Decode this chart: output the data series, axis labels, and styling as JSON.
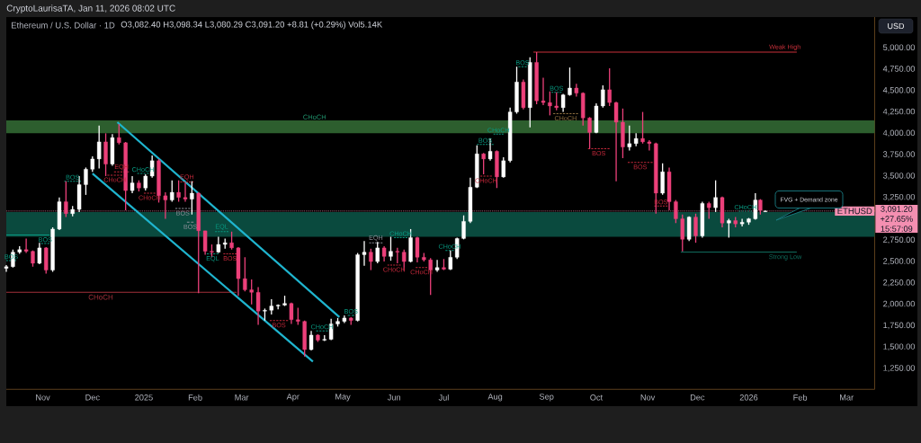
{
  "chart_data": {
    "type": "candlestick",
    "title": "Ethereum / U.S. Dollar · 1D",
    "subtitle": "O3,082.40 H3,098.34 L3,080.29 C3,091.20 +8.81 (+0.29%) Vol5.14K",
    "ylabel": "USD",
    "x": [
      "2024-10-10",
      "2024-10-14",
      "2024-10-18",
      "2024-10-22",
      "2024-10-26",
      "2024-10-30",
      "2024-11-03",
      "2024-11-07",
      "2024-11-11",
      "2024-11-15",
      "2024-11-19",
      "2024-11-23",
      "2024-11-27",
      "2024-12-01",
      "2024-12-05",
      "2024-12-09",
      "2024-12-13",
      "2024-12-17",
      "2024-12-21",
      "2024-12-25",
      "2024-12-29",
      "2025-01-02",
      "2025-01-06",
      "2025-01-10",
      "2025-01-14",
      "2025-01-18",
      "2025-01-22",
      "2025-01-26",
      "2025-01-30",
      "2025-02-03",
      "2025-02-07",
      "2025-02-11",
      "2025-02-15",
      "2025-02-19",
      "2025-02-23",
      "2025-02-27",
      "2025-03-03",
      "2025-03-07",
      "2025-03-11",
      "2025-03-15",
      "2025-03-19",
      "2025-03-23",
      "2025-03-27",
      "2025-03-31",
      "2025-04-04",
      "2025-04-08",
      "2025-04-12",
      "2025-04-16",
      "2025-04-20",
      "2025-04-24",
      "2025-04-28",
      "2025-05-02",
      "2025-05-06",
      "2025-05-10",
      "2025-05-14",
      "2025-05-18",
      "2025-05-22",
      "2025-05-26",
      "2025-05-30",
      "2025-06-03",
      "2025-06-07",
      "2025-06-11",
      "2025-06-15",
      "2025-06-19",
      "2025-06-23",
      "2025-06-27",
      "2025-07-01",
      "2025-07-05",
      "2025-07-09",
      "2025-07-13",
      "2025-07-17",
      "2025-07-21",
      "2025-07-25",
      "2025-07-29",
      "2025-08-02",
      "2025-08-06",
      "2025-08-10",
      "2025-08-14",
      "2025-08-18",
      "2025-08-22",
      "2025-08-26",
      "2025-08-30",
      "2025-09-03",
      "2025-09-07",
      "2025-09-11",
      "2025-09-15",
      "2025-09-19",
      "2025-09-23",
      "2025-09-27",
      "2025-10-01",
      "2025-10-05",
      "2025-10-09",
      "2025-10-13",
      "2025-10-17",
      "2025-10-21",
      "2025-10-25",
      "2025-10-29",
      "2025-11-02",
      "2025-11-06",
      "2025-11-10",
      "2025-11-14",
      "2025-11-18",
      "2025-11-22",
      "2025-11-26",
      "2025-11-30",
      "2025-12-04",
      "2025-12-08",
      "2025-12-12",
      "2025-12-16",
      "2025-12-20",
      "2025-12-24",
      "2025-12-28",
      "2026-01-01",
      "2026-01-05",
      "2026-01-08",
      "2026-01-11"
    ],
    "ohlc": [
      [
        2420,
        2460,
        2380,
        2440
      ],
      [
        2440,
        2640,
        2430,
        2610
      ],
      [
        2610,
        2680,
        2590,
        2640
      ],
      [
        2640,
        2770,
        2600,
        2620
      ],
      [
        2620,
        2630,
        2440,
        2480
      ],
      [
        2480,
        2720,
        2470,
        2660
      ],
      [
        2660,
        2670,
        2360,
        2400
      ],
      [
        2400,
        2900,
        2380,
        2880
      ],
      [
        2880,
        3250,
        2870,
        3200
      ],
      [
        3200,
        3440,
        3020,
        3060
      ],
      [
        3060,
        3150,
        3030,
        3110
      ],
      [
        3110,
        3500,
        3080,
        3400
      ],
      [
        3400,
        3600,
        3280,
        3580
      ],
      [
        3580,
        3730,
        3550,
        3700
      ],
      [
        3700,
        4090,
        3590,
        3900
      ],
      [
        3900,
        4000,
        3500,
        3640
      ],
      [
        3640,
        3990,
        3620,
        3950
      ],
      [
        3950,
        4110,
        3870,
        3890
      ],
      [
        3890,
        3900,
        3100,
        3330
      ],
      [
        3330,
        3500,
        3300,
        3420
      ],
      [
        3420,
        3450,
        3320,
        3360
      ],
      [
        3360,
        3520,
        3330,
        3500
      ],
      [
        3500,
        3740,
        3480,
        3680
      ],
      [
        3680,
        3700,
        3190,
        3270
      ],
      [
        3270,
        3310,
        3000,
        3220
      ],
      [
        3220,
        3450,
        3200,
        3310
      ],
      [
        3310,
        3450,
        3200,
        3250
      ],
      [
        3250,
        3420,
        3200,
        3230
      ],
      [
        3230,
        3440,
        3050,
        3300
      ],
      [
        3300,
        3310,
        2130,
        2860
      ],
      [
        2860,
        2860,
        2580,
        2620
      ],
      [
        2620,
        2700,
        2550,
        2610
      ],
      [
        2610,
        2790,
        2600,
        2700
      ],
      [
        2700,
        2770,
        2650,
        2720
      ],
      [
        2720,
        2850,
        2640,
        2660
      ],
      [
        2660,
        2670,
        2100,
        2300
      ],
      [
        2300,
        2550,
        2150,
        2170
      ],
      [
        2170,
        2290,
        2000,
        2140
      ],
      [
        2140,
        2200,
        1760,
        1920
      ],
      [
        1920,
        1950,
        1810,
        1930
      ],
      [
        1930,
        2060,
        1880,
        1980
      ],
      [
        1980,
        2000,
        1940,
        1990
      ],
      [
        1990,
        2100,
        1980,
        2010
      ],
      [
        2010,
        2020,
        1770,
        1820
      ],
      [
        1820,
        1960,
        1760,
        1800
      ],
      [
        1800,
        1810,
        1390,
        1470
      ],
      [
        1470,
        1690,
        1460,
        1640
      ],
      [
        1640,
        1650,
        1560,
        1580
      ],
      [
        1580,
        1640,
        1570,
        1590
      ],
      [
        1590,
        1830,
        1580,
        1770
      ],
      [
        1770,
        1840,
        1740,
        1800
      ],
      [
        1800,
        1870,
        1780,
        1840
      ],
      [
        1840,
        1850,
        1760,
        1810
      ],
      [
        1810,
        2600,
        1800,
        2580
      ],
      [
        2580,
        2740,
        2450,
        2610
      ],
      [
        2610,
        2650,
        2400,
        2500
      ],
      [
        2500,
        2730,
        2480,
        2660
      ],
      [
        2660,
        2680,
        2500,
        2560
      ],
      [
        2560,
        2790,
        2510,
        2620
      ],
      [
        2620,
        2660,
        2480,
        2610
      ],
      [
        2610,
        2640,
        2390,
        2500
      ],
      [
        2500,
        2880,
        2490,
        2780
      ],
      [
        2780,
        2790,
        2490,
        2550
      ],
      [
        2550,
        2600,
        2500,
        2520
      ],
      [
        2520,
        2540,
        2110,
        2400
      ],
      [
        2400,
        2520,
        2380,
        2430
      ],
      [
        2430,
        2530,
        2400,
        2410
      ],
      [
        2410,
        2630,
        2400,
        2550
      ],
      [
        2550,
        2780,
        2530,
        2770
      ],
      [
        2770,
        3040,
        2760,
        2970
      ],
      [
        2970,
        3480,
        2950,
        3370
      ],
      [
        3370,
        3860,
        3360,
        3760
      ],
      [
        3760,
        3770,
        3520,
        3700
      ],
      [
        3700,
        3940,
        3680,
        3790
      ],
      [
        3790,
        3800,
        3360,
        3490
      ],
      [
        3490,
        3720,
        3480,
        3680
      ],
      [
        3680,
        4300,
        3660,
        4250
      ],
      [
        4250,
        4780,
        4230,
        4600
      ],
      [
        4600,
        4630,
        4280,
        4300
      ],
      [
        4300,
        4890,
        4070,
        4830
      ],
      [
        4830,
        4950,
        4340,
        4380
      ],
      [
        4380,
        4650,
        4330,
        4360
      ],
      [
        4360,
        4490,
        4210,
        4320
      ],
      [
        4320,
        4480,
        4270,
        4300
      ],
      [
        4300,
        4460,
        4250,
        4450
      ],
      [
        4450,
        4770,
        4440,
        4530
      ],
      [
        4530,
        4580,
        4430,
        4470
      ],
      [
        4470,
        4480,
        4090,
        4180
      ],
      [
        4180,
        4190,
        3820,
        4010
      ],
      [
        4010,
        4350,
        4000,
        4320
      ],
      [
        4320,
        4560,
        4300,
        4510
      ],
      [
        4510,
        4760,
        4320,
        4360
      ],
      [
        4360,
        4370,
        3440,
        4130
      ],
      [
        4130,
        4290,
        3710,
        3840
      ],
      [
        3840,
        4090,
        3800,
        3880
      ],
      [
        3880,
        4000,
        3850,
        3940
      ],
      [
        3940,
        4250,
        3880,
        3900
      ],
      [
        3900,
        3920,
        3800,
        3880
      ],
      [
        3880,
        3890,
        3060,
        3300
      ],
      [
        3300,
        3650,
        3280,
        3550
      ],
      [
        3550,
        3600,
        3100,
        3200
      ],
      [
        3200,
        3220,
        2950,
        3000
      ],
      [
        3000,
        3050,
        2620,
        2760
      ],
      [
        2760,
        3030,
        2740,
        3020
      ],
      [
        3020,
        3060,
        2720,
        2800
      ],
      [
        2800,
        3200,
        2780,
        3180
      ],
      [
        3180,
        3200,
        3000,
        3130
      ],
      [
        3130,
        3450,
        3080,
        3250
      ],
      [
        3250,
        3260,
        2900,
        2950
      ],
      [
        2950,
        3000,
        2780,
        2980
      ],
      [
        2980,
        3020,
        2900,
        2940
      ],
      [
        2940,
        3000,
        2910,
        2960
      ],
      [
        2960,
        3010,
        2930,
        3000
      ],
      [
        3000,
        3300,
        2990,
        3220
      ],
      [
        3220,
        3230,
        3050,
        3100
      ],
      [
        3082.4,
        3098.34,
        3080.29,
        3091.2
      ]
    ],
    "colors": [
      "#ffffff",
      "#ffffff",
      "#ffffff",
      "#ec407a",
      "#ec407a",
      "#ffffff",
      "#ec407a",
      "#ffffff",
      "#ffffff",
      "#ec407a",
      "#ffffff",
      "#ffffff",
      "#ffffff",
      "#ffffff",
      "#ffffff",
      "#ec407a",
      "#ffffff",
      "#ec407a",
      "#ec407a",
      "#ffffff",
      "#ec407a",
      "#ffffff",
      "#ffffff",
      "#ec407a",
      "#ec407a",
      "#ffffff",
      "#ec407a",
      "#ec407a",
      "#ffffff",
      "#ec407a",
      "#ec407a",
      "#ec407a",
      "#ffffff",
      "#ffffff",
      "#ec407a",
      "#ec407a",
      "#ec407a",
      "#ec407a",
      "#ec407a",
      "#ffffff",
      "#ffffff",
      "#ffffff",
      "#ffffff",
      "#ec407a",
      "#ec407a",
      "#ec407a",
      "#ffffff",
      "#ec407a",
      "#ffffff",
      "#ffffff",
      "#ffffff",
      "#ffffff",
      "#ec407a",
      "#ffffff",
      "#ffffff",
      "#ec407a",
      "#ffffff",
      "#ec407a",
      "#ffffff",
      "#ec407a",
      "#ec407a",
      "#ffffff",
      "#ec407a",
      "#ec407a",
      "#ec407a",
      "#ffffff",
      "#ec407a",
      "#ffffff",
      "#ffffff",
      "#ffffff",
      "#ffffff",
      "#ffffff",
      "#ec407a",
      "#ffffff",
      "#ec407a",
      "#ffffff",
      "#ffffff",
      "#ffffff",
      "#ec407a",
      "#ffffff",
      "#ec407a",
      "#ec407a",
      "#ec407a",
      "#ec407a",
      "#ffffff",
      "#ffffff",
      "#ec407a",
      "#ec407a",
      "#ec407a",
      "#ffffff",
      "#ffffff",
      "#ec407a",
      "#ec407a",
      "#ec407a",
      "#ffffff",
      "#ffffff",
      "#ec407a",
      "#ec407a",
      "#ec407a",
      "#ffffff",
      "#ec407a",
      "#ec407a",
      "#ec407a",
      "#ffffff",
      "#ec407a",
      "#ffffff",
      "#ec407a",
      "#ffffff",
      "#ec407a",
      "#ffffff",
      "#ec407a",
      "#ffffff",
      "#ffffff",
      "#ffffff",
      "#ec407a",
      "#ffffff"
    ],
    "series": [
      {
        "type": "line",
        "name": "CHoCH",
        "color": "#a3313b",
        "x": [
          "2024-10-10",
          "2025-02-26"
        ],
        "values": [
          2140,
          2140
        ]
      },
      {
        "type": "line",
        "name": "Weak High",
        "color": "#c9303a",
        "x": [
          "2025-08-24",
          "2026-01-30"
        ],
        "values": [
          4950,
          4950
        ]
      },
      {
        "type": "line",
        "name": "Strong Low",
        "color": "#0f6b5c",
        "x": [
          "2025-11-21",
          "2026-01-30"
        ],
        "values": [
          2610,
          2610
        ]
      },
      {
        "type": "line",
        "color": "#1fb5cf",
        "x": [
          "2024-12-16",
          "2025-04-29"
        ],
        "values": [
          4130,
          1850
        ]
      },
      {
        "type": "line",
        "color": "#1fb5cf",
        "x": [
          "2024-12-01",
          "2025-04-13"
        ],
        "values": [
          3530,
          1330
        ]
      },
      {
        "type": "line",
        "color": "#089981",
        "x": [
          "2024-10-10",
          "2024-11-05"
        ],
        "values": [
          2810,
          2810
        ]
      },
      {
        "type": "line",
        "name": "BOS",
        "color": "#089981",
        "line_style": "dashed",
        "x": [
          "2024-11-14",
          "2024-11-24"
        ],
        "values": [
          3440,
          3440
        ]
      },
      {
        "type": "line",
        "name": "EQH",
        "color": "#c2283a",
        "line_style": "dashed",
        "x": [
          "2024-12-14",
          "2024-12-23"
        ],
        "values": [
          3550,
          3550
        ]
      },
      {
        "type": "line",
        "name": "CHoCH",
        "color": "#089981",
        "line_style": "dashed",
        "x": [
          "2024-12-28",
          "2025-01-04"
        ],
        "values": [
          3530,
          3530
        ]
      },
      {
        "type": "line",
        "name": "CHoCH",
        "color": "#c2283a",
        "line_style": "dashed",
        "x": [
          "2024-12-10",
          "2024-12-19"
        ],
        "values": [
          3510,
          3510
        ]
      },
      {
        "type": "line",
        "name": "CHoCH",
        "color": "#c2283a",
        "line_style": "dashed",
        "x": [
          "2025-01-01",
          "2025-01-08"
        ],
        "values": [
          3300,
          3300
        ]
      },
      {
        "type": "line",
        "name": "EQH",
        "color": "#c2283a",
        "line_style": "dashed",
        "x": [
          "2025-01-23",
          "2025-01-31"
        ],
        "values": [
          3430,
          3430
        ]
      },
      {
        "type": "line",
        "name": "BOS",
        "color": "#8c8f99",
        "line_style": "dashed",
        "x": [
          "2025-01-20",
          "2025-01-29"
        ],
        "values": [
          3120,
          3120
        ]
      },
      {
        "type": "line",
        "name": "BOS",
        "color": "#8c8f99",
        "line_style": "dashed",
        "x": [
          "2025-01-27",
          "2025-01-31"
        ],
        "values": [
          2960,
          2960
        ]
      },
      {
        "type": "line",
        "name": "EQL",
        "color": "#089981",
        "line_style": "dashed",
        "x": [
          "2025-02-13",
          "2025-02-21"
        ],
        "values": [
          2850,
          2850
        ]
      },
      {
        "type": "line",
        "name": "EQL",
        "color": "#089981",
        "line_style": "dashed",
        "x": [
          "2025-02-08",
          "2025-02-15"
        ],
        "values": [
          2590,
          2590
        ]
      },
      {
        "type": "line",
        "name": "BOS",
        "color": "#c2283a",
        "line_style": "dashed",
        "x": [
          "2025-02-18",
          "2025-02-26"
        ],
        "values": [
          2590,
          2590
        ]
      },
      {
        "type": "line",
        "name": "BOS",
        "color": "#c2283a",
        "line_style": "dashed",
        "x": [
          "2025-03-18",
          "2025-03-29"
        ],
        "values": [
          1810,
          1810
        ]
      },
      {
        "type": "line",
        "name": "BOS",
        "color": "#089981",
        "line_style": "dashed",
        "x": [
          "2024-10-31",
          "2024-11-05"
        ],
        "values": [
          2710,
          2710
        ]
      },
      {
        "type": "line",
        "name": "BOS",
        "color": "#089981",
        "line_style": "dashed",
        "x": [
          "2024-10-10",
          "2024-10-16"
        ],
        "values": [
          2510,
          2510
        ]
      },
      {
        "type": "line",
        "name": "CHoCH",
        "color": "#089981",
        "line_style": "dashed",
        "x": [
          "2025-04-15",
          "2025-04-22"
        ],
        "values": [
          1690,
          1690
        ]
      },
      {
        "type": "line",
        "name": "BOS",
        "color": "#089981",
        "line_style": "dashed",
        "x": [
          "2025-05-04",
          "2025-05-08"
        ],
        "values": [
          1870,
          1870
        ]
      },
      {
        "type": "line",
        "name": "EQH",
        "color": "#8c8f99",
        "line_style": "dashed",
        "x": [
          "2025-05-17",
          "2025-05-25"
        ],
        "values": [
          2720,
          2720
        ]
      },
      {
        "type": "line",
        "name": "CHoCH",
        "color": "#089981",
        "line_style": "dashed",
        "x": [
          "2025-06-01",
          "2025-06-09"
        ],
        "values": [
          2780,
          2780
        ]
      },
      {
        "type": "line",
        "name": "CHoCH",
        "color": "#c2283a",
        "line_style": "dashed",
        "x": [
          "2025-05-28",
          "2025-06-05"
        ],
        "values": [
          2460,
          2460
        ]
      },
      {
        "type": "line",
        "name": "CHoCH",
        "color": "#c2283a",
        "line_style": "dashed",
        "x": [
          "2025-06-14",
          "2025-06-21"
        ],
        "values": [
          2430,
          2430
        ]
      },
      {
        "type": "line",
        "name": "CHoCH",
        "color": "#089981",
        "line_style": "dashed",
        "x": [
          "2025-07-02",
          "2025-07-07"
        ],
        "values": [
          2630,
          2630
        ]
      },
      {
        "type": "line",
        "name": "BOS",
        "color": "#089981",
        "line_style": "dashed",
        "x": [
          "2025-07-21",
          "2025-07-31"
        ],
        "values": [
          3870,
          3870
        ]
      },
      {
        "type": "line",
        "name": "CHoCH",
        "color": "#089981",
        "line_style": "dashed",
        "x": [
          "2025-07-31",
          "2025-08-06"
        ],
        "values": [
          3990,
          3990
        ]
      },
      {
        "type": "line",
        "name": "CHoCH",
        "color": "#c2283a",
        "line_style": "dashed",
        "x": [
          "2025-07-23",
          "2025-07-30"
        ],
        "values": [
          3500,
          3500
        ]
      },
      {
        "type": "line",
        "name": "BOS",
        "color": "#089981",
        "line_style": "dashed",
        "x": [
          "2025-08-15",
          "2025-08-20"
        ],
        "values": [
          4780,
          4780
        ]
      },
      {
        "type": "line",
        "name": "BOS",
        "color": "#089981",
        "line_style": "dashed",
        "x": [
          "2025-09-04",
          "2025-09-10"
        ],
        "values": [
          4480,
          4480
        ]
      },
      {
        "type": "line",
        "name": "CHoCH",
        "color": "#8d6e3f",
        "line_style": "dashed",
        "x": [
          "2025-09-05",
          "2025-09-20"
        ],
        "values": [
          4230,
          4230
        ]
      },
      {
        "type": "line",
        "name": "BOS",
        "color": "#c2283a",
        "line_style": "dashed",
        "x": [
          "2025-09-26",
          "2025-10-09"
        ],
        "values": [
          3820,
          3820
        ]
      },
      {
        "type": "line",
        "name": "BOS",
        "color": "#c2283a",
        "line_style": "dashed",
        "x": [
          "2025-10-20",
          "2025-11-04"
        ],
        "values": [
          3660,
          3660
        ]
      },
      {
        "type": "line",
        "name": "BOS",
        "color": "#c2283a",
        "line_style": "dashed",
        "x": [
          "2025-11-05",
          "2025-11-13"
        ],
        "values": [
          3150,
          3150
        ]
      },
      {
        "type": "line",
        "name": "CHoCH",
        "color": "#089981",
        "line_style": "dashed",
        "x": [
          "2025-12-26",
          "2026-01-03"
        ],
        "values": [
          3090,
          3090
        ]
      }
    ],
    "bands": [
      {
        "axis": "y",
        "from": 4000,
        "to": 4150,
        "label": "CHoCH",
        "color": "#2d5e2e"
      },
      {
        "axis": "y",
        "from": 2790,
        "to": 3080,
        "label": "FVG + Demand zone",
        "color": "#0a4a3e"
      }
    ],
    "ref_lines": [
      {
        "axis": "y",
        "value": 3091.2,
        "label": "ETHUSD",
        "color": "#f48fb1",
        "line_style": "dotted"
      }
    ],
    "xlim": [
      "2024-10-10",
      "2026-03-18"
    ],
    "xticks": [
      {
        "value": "2024-11-01",
        "label": "Nov"
      },
      {
        "value": "2024-12-01",
        "label": "Dec"
      },
      {
        "value": "2025-01-01",
        "label": "2025"
      },
      {
        "value": "2025-02-01",
        "label": "Feb"
      },
      {
        "value": "2025-03-01",
        "label": "Mar"
      },
      {
        "value": "2025-04-01",
        "label": "Apr"
      },
      {
        "value": "2025-05-01",
        "label": "May"
      },
      {
        "value": "2025-06-01",
        "label": "Jun"
      },
      {
        "value": "2025-07-01",
        "label": "Jul"
      },
      {
        "value": "2025-08-01",
        "label": "Aug"
      },
      {
        "value": "2025-09-01",
        "label": "Sep"
      },
      {
        "value": "2025-10-01",
        "label": "Oct"
      },
      {
        "value": "2025-11-01",
        "label": "Nov"
      },
      {
        "value": "2025-12-01",
        "label": "Dec"
      },
      {
        "value": "2026-01-01",
        "label": "2026"
      },
      {
        "value": "2026-02-01",
        "label": "Feb"
      },
      {
        "value": "2026-03-01",
        "label": "Mar"
      }
    ],
    "ylim": [
      1005,
      5360
    ],
    "yticks": [
      {
        "value": 1250,
        "label": "1,250.00"
      },
      {
        "value": 1500,
        "label": "1,500.00"
      },
      {
        "value": 1750,
        "label": "1,750.00"
      },
      {
        "value": 2000,
        "label": "2,000.00"
      },
      {
        "value": 2250,
        "label": "2,250.00"
      },
      {
        "value": 2500,
        "label": "2,500.00"
      },
      {
        "value": 2750,
        "label": "2,750.00"
      },
      {
        "value": 3250,
        "label": "3,250.00"
      },
      {
        "value": 3500,
        "label": "3,500.00"
      },
      {
        "value": 3750,
        "label": "3,750.00"
      },
      {
        "value": 4000,
        "label": "4,000.00"
      },
      {
        "value": 4250,
        "label": "4,250.00"
      },
      {
        "value": 4500,
        "label": "4,500.00"
      },
      {
        "value": 4750,
        "label": "4,750.00"
      },
      {
        "value": 5000,
        "label": "5,000.00"
      }
    ],
    "annotations": [
      "CryptoLaurisaTA, Jan 11, 2026 08:02 UTC",
      "3,091.20",
      "+27.65%",
      "15:57:09"
    ]
  }
}
